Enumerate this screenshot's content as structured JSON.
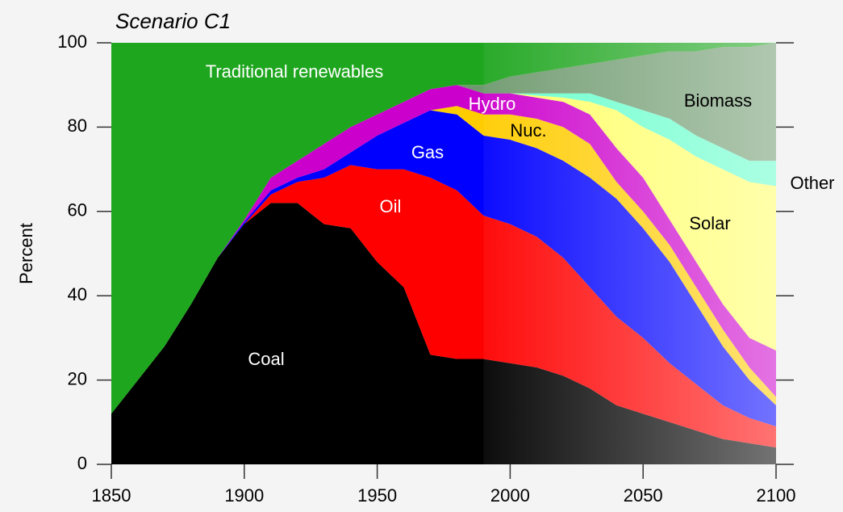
{
  "chart_data": {
    "type": "stacked_area",
    "title": "Scenario C1",
    "y_label": "Percent",
    "x": [
      1850,
      1860,
      1870,
      1880,
      1890,
      1900,
      1910,
      1920,
      1930,
      1940,
      1950,
      1960,
      1970,
      1980,
      1990,
      2000,
      2010,
      2020,
      2030,
      2040,
      2050,
      2060,
      2070,
      2080,
      2090,
      2100
    ],
    "xlim": [
      1850,
      2100
    ],
    "xticks": [
      1850,
      1900,
      1950,
      2000,
      2050,
      2100
    ],
    "ylim": [
      0,
      100
    ],
    "yticks": [
      0,
      20,
      40,
      60,
      80,
      100
    ],
    "series": [
      {
        "name": "Coal",
        "color": "#000000",
        "values": [
          12,
          20,
          28,
          38,
          49,
          57,
          62,
          62,
          57,
          56,
          48,
          42,
          26,
          25,
          25,
          24,
          23,
          21,
          18,
          14,
          12,
          10,
          8,
          6,
          5,
          4
        ]
      },
      {
        "name": "Oil",
        "color": "#ff0000",
        "values": [
          0,
          0,
          0,
          0,
          0,
          0,
          2,
          5,
          11,
          15,
          22,
          28,
          42,
          40,
          34,
          33,
          31,
          28,
          24,
          21,
          18,
          14,
          11,
          8,
          6,
          5
        ]
      },
      {
        "name": "Gas",
        "color": "#0000ff",
        "values": [
          0,
          0,
          0,
          0,
          0,
          0.5,
          1,
          1,
          2,
          3,
          8,
          11,
          16,
          18,
          19,
          20,
          21,
          23,
          26,
          28,
          26,
          24,
          19,
          14,
          9,
          5
        ]
      },
      {
        "name": "Nuc.",
        "color": "#ffcc00",
        "values": [
          0,
          0,
          0,
          0,
          0,
          0,
          0,
          0,
          0,
          0,
          0,
          0,
          0,
          2,
          5,
          6,
          7,
          8,
          8,
          4,
          4,
          4,
          4,
          4,
          3,
          2
        ]
      },
      {
        "name": "Hydro",
        "color": "#cc00cc",
        "values": [
          0,
          0,
          0,
          0,
          0,
          0.5,
          3,
          4,
          6,
          6,
          5,
          5,
          5,
          5,
          5,
          5,
          5,
          6,
          7,
          8,
          8,
          6,
          6,
          6,
          7,
          11
        ]
      },
      {
        "name": "Solar",
        "color": "#ffff66",
        "values": [
          0,
          0,
          0,
          0,
          0,
          0,
          0,
          0,
          0,
          0,
          0,
          0,
          0,
          0,
          0,
          0,
          0.5,
          1,
          3,
          9,
          12,
          19,
          25,
          32,
          37,
          39
        ]
      },
      {
        "name": "Other",
        "color": "#66ffcc",
        "values": [
          0,
          0,
          0,
          0,
          0,
          0,
          0,
          0,
          0,
          0,
          0,
          0,
          0,
          0,
          0,
          0,
          0.5,
          1,
          2,
          2,
          4,
          5,
          5,
          5,
          5,
          6
        ]
      },
      {
        "name": "Biomass",
        "color": "#6f9a6f",
        "values": [
          0,
          0,
          0,
          0,
          0,
          0,
          0,
          0,
          0,
          0,
          0,
          0,
          0,
          0,
          2,
          4,
          5,
          6,
          7,
          10,
          13,
          16,
          20,
          24,
          27,
          28
        ]
      },
      {
        "name": "Traditional renewables",
        "color": "#1fa61f",
        "values": [
          88,
          80,
          72,
          62,
          51,
          42,
          32,
          28,
          24,
          20,
          17,
          14,
          11,
          10,
          10,
          8,
          7,
          6,
          5,
          4,
          3,
          2,
          2,
          1,
          1,
          0
        ]
      }
    ]
  }
}
